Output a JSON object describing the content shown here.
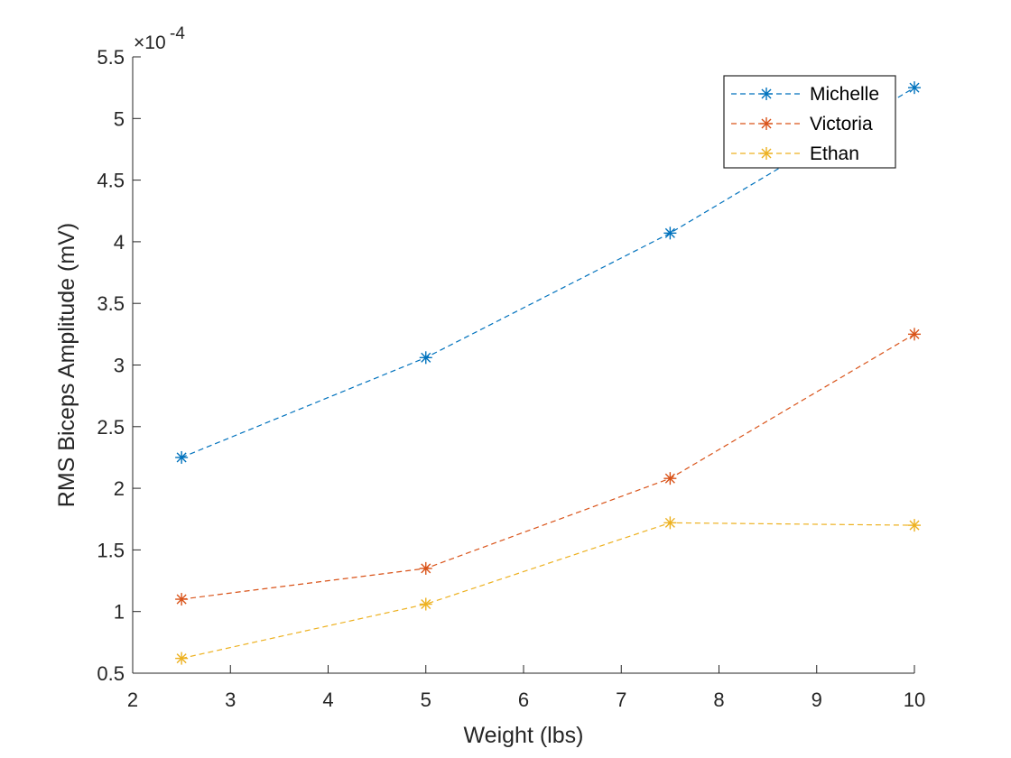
{
  "chart_data": {
    "type": "line",
    "xlabel": "Weight (lbs)",
    "ylabel": "RMS Biceps Amplitude (mV)",
    "exponent_multiplier": "×10",
    "exponent_power": "-4",
    "xlim": [
      2,
      10
    ],
    "ylim": [
      0.5,
      5.5
    ],
    "y_scale_factor": 0.0001,
    "x_ticks": [
      2,
      3,
      4,
      5,
      6,
      7,
      8,
      9,
      10
    ],
    "y_ticks": [
      0.5,
      1,
      1.5,
      2,
      2.5,
      3,
      3.5,
      4,
      4.5,
      5,
      5.5
    ],
    "grid": false,
    "legend_position": "top-right",
    "line_style": "dashed",
    "marker": "asterisk",
    "x": [
      2.5,
      5,
      7.5,
      10
    ],
    "series": [
      {
        "name": "Michelle",
        "color": "#0072BD",
        "values": [
          2.25,
          3.06,
          4.07,
          5.25
        ]
      },
      {
        "name": "Victoria",
        "color": "#D95319",
        "values": [
          1.1,
          1.35,
          2.08,
          3.25
        ]
      },
      {
        "name": "Ethan",
        "color": "#EDB120",
        "values": [
          0.62,
          1.06,
          1.72,
          1.7
        ]
      }
    ]
  }
}
